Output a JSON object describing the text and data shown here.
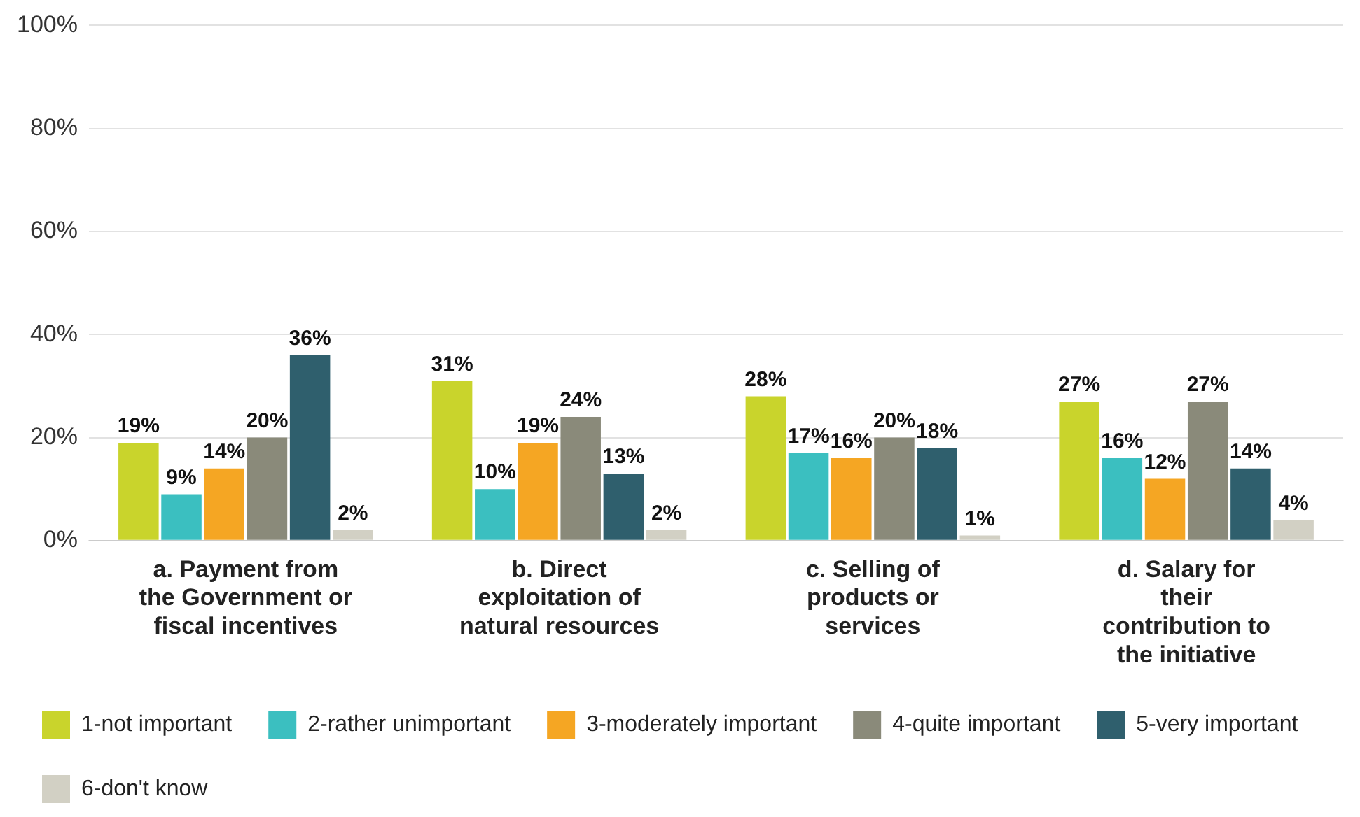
{
  "chart_data": {
    "type": "bar",
    "categories": [
      "a. Payment from the Government or fiscal incentives",
      "b. Direct exploitation of natural resources",
      "c. Selling of products or services",
      "d. Salary for their contribution to the initiative"
    ],
    "series": [
      {
        "name": "1-not important",
        "color": "#c9d42c",
        "values": [
          19,
          31,
          28,
          27
        ]
      },
      {
        "name": "2-rather unimportant",
        "color": "#3bbfc0",
        "values": [
          9,
          10,
          17,
          16
        ]
      },
      {
        "name": "3-moderately important",
        "color": "#f5a623",
        "values": [
          14,
          19,
          16,
          12
        ]
      },
      {
        "name": "4-quite important",
        "color": "#8a8a7a",
        "values": [
          20,
          24,
          20,
          27
        ]
      },
      {
        "name": "5-very important",
        "color": "#2f5f6d",
        "values": [
          36,
          13,
          18,
          14
        ]
      },
      {
        "name": "6-don't know",
        "color": "#d2d0c4",
        "values": [
          2,
          2,
          1,
          4
        ]
      }
    ],
    "ylim": [
      0,
      100
    ],
    "yticks": [
      {
        "value": 0,
        "label": "0%"
      },
      {
        "value": 20,
        "label": "20%"
      },
      {
        "value": 40,
        "label": "40%"
      },
      {
        "value": 60,
        "label": "60%"
      },
      {
        "value": 80,
        "label": "80%"
      },
      {
        "value": 100,
        "label": "100%"
      }
    ],
    "grid": "y",
    "legend": "bottom",
    "value_labels": [
      [
        "19%",
        "31%",
        "28%",
        "27%"
      ],
      [
        "9%",
        "10%",
        "17%",
        "16%"
      ],
      [
        "14%",
        "19%",
        "16%",
        "12%"
      ],
      [
        "20%",
        "24%",
        "20%",
        "27%"
      ],
      [
        "36%",
        "13%",
        "18%",
        "14%"
      ],
      [
        "2%",
        "2%",
        "1%",
        "4%"
      ]
    ]
  }
}
